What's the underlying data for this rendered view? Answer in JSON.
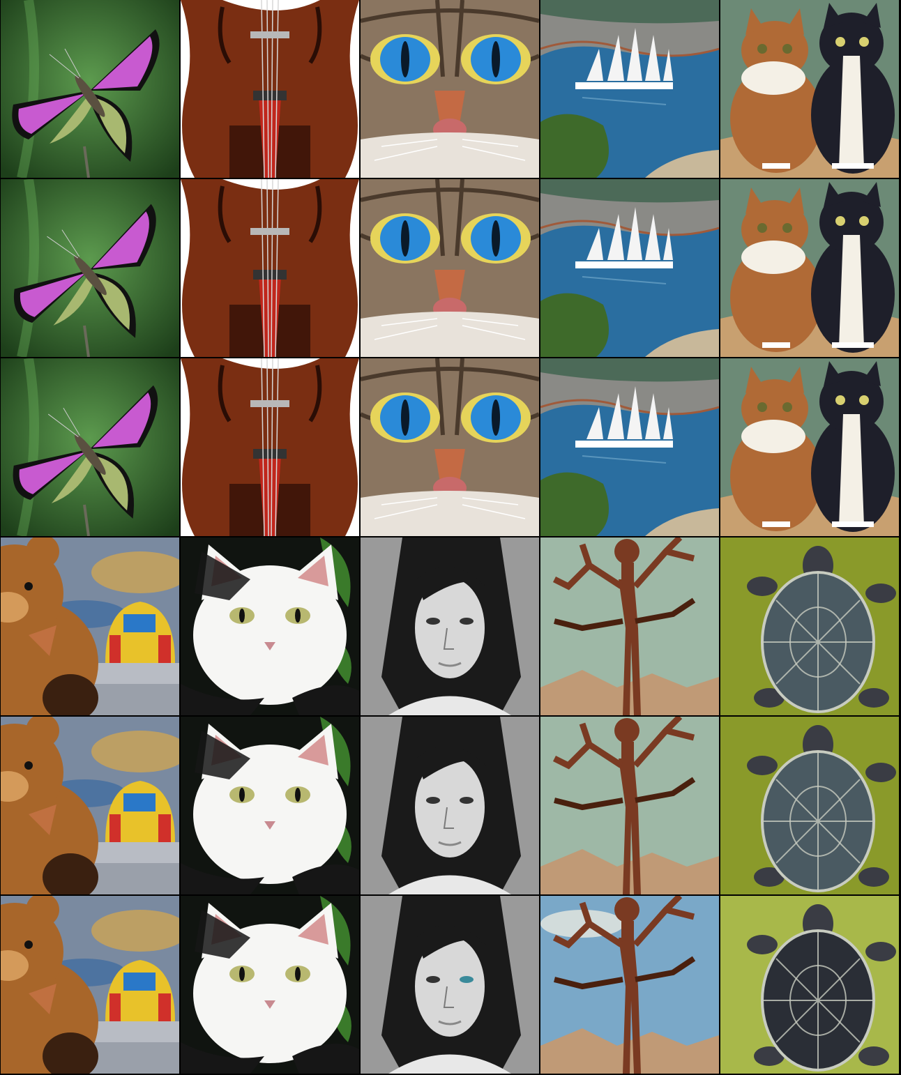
{
  "grid": {
    "columns": 5,
    "rows": 6
  },
  "palette": {
    "butterfly": {
      "bg1": "#5c9a4e",
      "bg2": "#1d3f1a",
      "wing": "#c85ad0",
      "wing2": "#a8b870",
      "edge": "#111111"
    },
    "violin": {
      "bg": "#ffffff",
      "body": "#7a2e12",
      "dark": "#2a0d05",
      "bridge": "#c0261c",
      "string": "#d8d8d8"
    },
    "cat_eyes": {
      "fur": "#8a7560",
      "fur_dark": "#4a3a2c",
      "iris": "#2a8ad8",
      "iris_ring": "#e6d45a",
      "nose": "#c46a44",
      "muzzle": "#e8e2da"
    },
    "sailboat": {
      "sky": "#4c6a58",
      "cliff": "#8a8a86",
      "water": "#2a6ea0",
      "sail": "#f4f4f4",
      "tree": "#3e6a2a",
      "rock": "#c8b89a"
    },
    "two_cats": {
      "bg": "#6c8a76",
      "ground": "#b87a3e",
      "tabby": "#b06a36",
      "white": "#f4f0e6",
      "black": "#1e1f2a"
    },
    "teddy": {
      "bear": "#a8662a",
      "bear_light": "#d49a5a",
      "blur1": "#3a6aa0",
      "blur2": "#d8a84a",
      "car_red": "#d0302a",
      "car_yellow": "#e8c22a",
      "car_blue": "#2a78c8",
      "shelf": "#b8bcc4"
    },
    "white_cat": {
      "bg": "#101410",
      "leaf": "#3a7a2a",
      "white": "#f6f6f4",
      "ear": "#d89a9a",
      "black": "#161616",
      "eye": "#b8b870"
    },
    "portrait": {
      "bg": "#9a9a9a",
      "hair": "#1a1a1a",
      "skin": "#d8d8d8",
      "shade": "#7a7a7a"
    },
    "tree_man": {
      "sky": "#9eb8a6",
      "sky_blue": "#7aa8c8",
      "ground": "#c09a76",
      "bark": "#7a3a22",
      "bark_dark": "#4a200e"
    },
    "turtle": {
      "bg": "#8a9a2a",
      "bg_light": "#a8b84a",
      "shell": "#4a5a62",
      "shell_dark": "#2a2e36",
      "lines": "#c8ccc0",
      "skin": "#3a3c44"
    }
  },
  "tiles": [
    {
      "subject": "butterfly",
      "variant": 0
    },
    {
      "subject": "violin",
      "variant": 0
    },
    {
      "subject": "cat_eyes",
      "variant": 0
    },
    {
      "subject": "sailboat",
      "variant": 0
    },
    {
      "subject": "two_cats",
      "variant": 0
    },
    {
      "subject": "butterfly",
      "variant": 1
    },
    {
      "subject": "violin",
      "variant": 1
    },
    {
      "subject": "cat_eyes",
      "variant": 1
    },
    {
      "subject": "sailboat",
      "variant": 1
    },
    {
      "subject": "two_cats",
      "variant": 1
    },
    {
      "subject": "butterfly",
      "variant": 2
    },
    {
      "subject": "violin",
      "variant": 2
    },
    {
      "subject": "cat_eyes",
      "variant": 2
    },
    {
      "subject": "sailboat",
      "variant": 2
    },
    {
      "subject": "two_cats",
      "variant": 2
    },
    {
      "subject": "teddy",
      "variant": 0
    },
    {
      "subject": "white_cat",
      "variant": 0
    },
    {
      "subject": "portrait",
      "variant": 0
    },
    {
      "subject": "tree_man",
      "variant": 0
    },
    {
      "subject": "turtle",
      "variant": 0
    },
    {
      "subject": "teddy",
      "variant": 1
    },
    {
      "subject": "white_cat",
      "variant": 1
    },
    {
      "subject": "portrait",
      "variant": 1
    },
    {
      "subject": "tree_man",
      "variant": 1
    },
    {
      "subject": "turtle",
      "variant": 1
    },
    {
      "subject": "teddy",
      "variant": 2
    },
    {
      "subject": "white_cat",
      "variant": 2
    },
    {
      "subject": "portrait",
      "variant": 2
    },
    {
      "subject": "tree_man",
      "variant": 2
    },
    {
      "subject": "turtle",
      "variant": 2
    }
  ]
}
